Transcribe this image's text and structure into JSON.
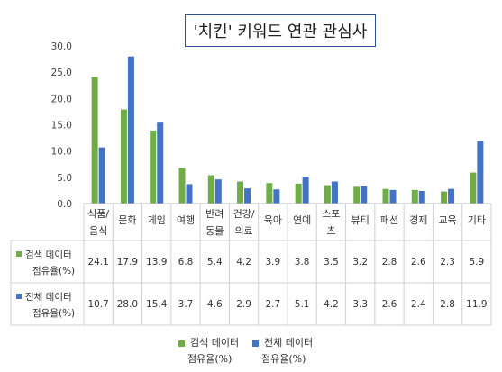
{
  "chart_data": {
    "type": "bar",
    "title": "'치킨' 키워드 연관 관심사",
    "categories": [
      [
        "식품/",
        "음식"
      ],
      [
        "문화"
      ],
      [
        "게임"
      ],
      [
        "여행"
      ],
      [
        "반려",
        "동물"
      ],
      [
        "건강/",
        "의료"
      ],
      [
        "육아"
      ],
      [
        "연예"
      ],
      [
        "스포",
        "츠"
      ],
      [
        "뷰티"
      ],
      [
        "패션"
      ],
      [
        "경제"
      ],
      [
        "교육"
      ],
      [
        "기타"
      ]
    ],
    "series": [
      {
        "name": [
          "검색 데이터",
          "점유율(%)"
        ],
        "color": "#70ad47",
        "values": [
          24.1,
          17.9,
          13.9,
          6.8,
          5.4,
          4.2,
          3.9,
          3.8,
          3.5,
          3.2,
          2.8,
          2.6,
          2.3,
          5.9
        ]
      },
      {
        "name": [
          "전체 데이터",
          "점유율(%)"
        ],
        "color": "#4472c4",
        "values": [
          10.7,
          28.0,
          15.4,
          3.7,
          4.6,
          2.9,
          2.7,
          5.1,
          4.2,
          3.3,
          2.6,
          2.4,
          2.8,
          11.9
        ]
      }
    ],
    "ylim": [
      0,
      30
    ],
    "yticks": [
      "0.0",
      "5.0",
      "10.0",
      "15.0",
      "20.0",
      "25.0",
      "30.0"
    ],
    "grid": false,
    "data_table": true,
    "legend_position": "bottom"
  }
}
